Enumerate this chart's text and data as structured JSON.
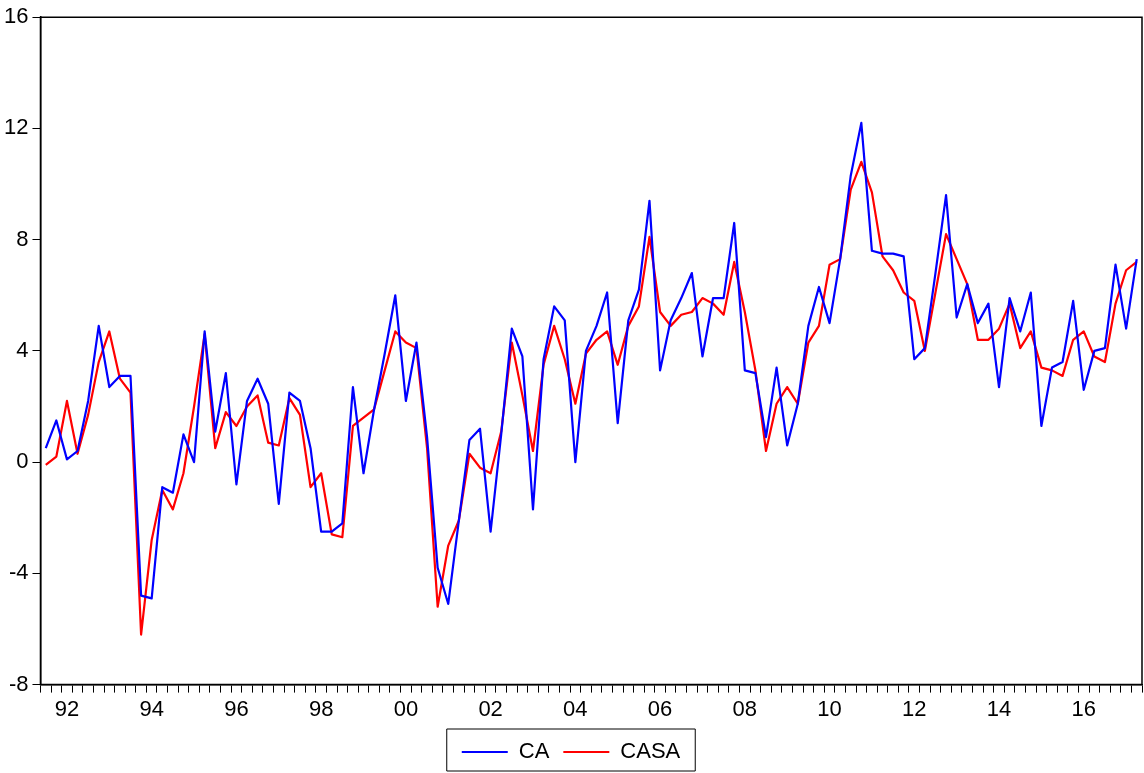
{
  "chart_data": {
    "type": "line",
    "legend": "bottom",
    "grid": false,
    "marker": "none",
    "line_style": "solid",
    "categories": [
      null,
      null,
      "92",
      null,
      null,
      null,
      null,
      null,
      null,
      null,
      "94",
      null,
      null,
      null,
      null,
      null,
      null,
      null,
      "96",
      null,
      null,
      null,
      null,
      null,
      null,
      null,
      "98",
      null,
      null,
      null,
      null,
      null,
      null,
      null,
      "00",
      null,
      null,
      null,
      null,
      null,
      null,
      null,
      "02",
      null,
      null,
      null,
      null,
      null,
      null,
      null,
      "04",
      null,
      null,
      null,
      null,
      null,
      null,
      null,
      "06",
      null,
      null,
      null,
      null,
      null,
      null,
      null,
      "08",
      null,
      null,
      null,
      null,
      null,
      null,
      null,
      "10",
      null,
      null,
      null,
      null,
      null,
      null,
      null,
      "12",
      null,
      null,
      null,
      null,
      null,
      null,
      null,
      "14",
      null,
      null,
      null,
      null,
      null,
      null,
      null,
      "16",
      null,
      null,
      null,
      null,
      null
    ],
    "ylim": [
      -8,
      16
    ],
    "yticks": [
      -8,
      -4,
      0,
      4,
      8,
      12,
      16
    ],
    "series": [
      {
        "name": "CA",
        "color": "#0000ff",
        "values": [
          0.5,
          1.5,
          0.1,
          0.4,
          2.2,
          4.9,
          2.7,
          3.1,
          3.1,
          -4.8,
          -4.9,
          -0.9,
          -1.1,
          1.0,
          0.0,
          4.7,
          1.1,
          3.2,
          -0.8,
          2.2,
          3.0,
          2.1,
          -1.5,
          2.5,
          2.2,
          0.5,
          -2.5,
          -2.5,
          -2.2,
          2.7,
          -0.4,
          1.9,
          3.9,
          6.0,
          2.2,
          4.3,
          0.9,
          -3.8,
          -5.1,
          -2.1,
          0.8,
          1.2,
          -2.5,
          1.0,
          4.8,
          3.8,
          -1.7,
          3.7,
          5.6,
          5.1,
          0.0,
          4.0,
          4.9,
          6.1,
          1.4,
          5.1,
          6.2,
          9.4,
          3.3,
          5.1,
          5.9,
          6.8,
          3.8,
          5.9,
          5.9,
          8.6,
          3.3,
          3.2,
          0.9,
          3.4,
          0.6,
          2.1,
          4.9,
          6.3,
          5.0,
          7.3,
          10.3,
          12.2,
          7.6,
          7.5,
          7.5,
          7.4,
          3.7,
          4.1,
          6.8,
          9.6,
          5.2,
          6.4,
          5.0,
          5.7,
          2.7,
          5.9,
          4.7,
          6.1,
          1.3,
          3.4,
          3.6,
          5.8,
          2.6,
          4.0,
          4.1,
          7.1,
          4.8,
          7.3
        ]
      },
      {
        "name": "CASA",
        "color": "#ff0000",
        "values": [
          -0.1,
          0.2,
          2.2,
          0.3,
          1.7,
          3.6,
          4.7,
          3.0,
          2.5,
          -6.2,
          -2.8,
          -1.0,
          -1.7,
          -0.4,
          2.0,
          4.6,
          0.5,
          1.8,
          1.3,
          2.0,
          2.4,
          0.7,
          0.6,
          2.3,
          1.7,
          -0.9,
          -0.4,
          -2.6,
          -2.7,
          1.3,
          1.6,
          1.9,
          3.3,
          4.7,
          4.3,
          4.1,
          0.5,
          -5.2,
          -3.0,
          -2.1,
          0.3,
          -0.2,
          -0.4,
          1.1,
          4.3,
          2.4,
          0.4,
          3.5,
          4.9,
          3.7,
          2.1,
          3.9,
          4.4,
          4.7,
          3.5,
          4.9,
          5.6,
          8.1,
          5.4,
          4.9,
          5.3,
          5.4,
          5.9,
          5.7,
          5.3,
          7.2,
          5.4,
          3.3,
          0.4,
          2.1,
          2.7,
          2.1,
          4.3,
          4.9,
          7.1,
          7.3,
          9.8,
          10.8,
          9.7,
          7.4,
          6.9,
          6.1,
          5.8,
          4.0,
          6.1,
          8.2,
          7.3,
          6.4,
          4.4,
          4.4,
          4.8,
          5.7,
          4.1,
          4.7,
          3.4,
          3.3,
          3.1,
          4.4,
          4.7,
          3.8,
          3.6,
          5.7,
          6.9,
          7.2
        ]
      }
    ]
  }
}
